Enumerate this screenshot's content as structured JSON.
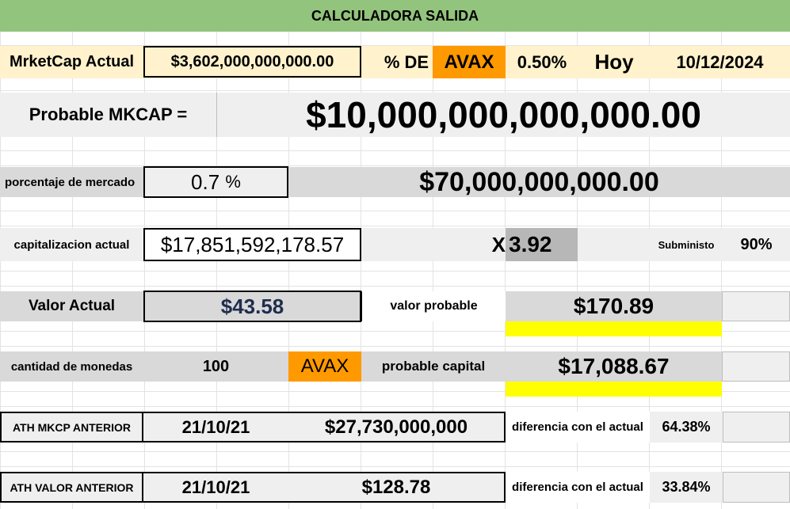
{
  "title": "CALCULADORA SALIDA",
  "marketcap": {
    "label": "MrketCap Actual",
    "value": "$3,602,000,000,000.00",
    "pct_de_label": "% DE",
    "coin": "AVAX",
    "pct_value": "0.50%",
    "hoy_label": "Hoy",
    "date": "10/12/2024"
  },
  "probable": {
    "label": "Probable MKCAP  =",
    "value": "$10,000,000,000,000.00"
  },
  "market_share": {
    "label": "porcentaje de mercado",
    "value": "0.7",
    "unit": "%",
    "result": "$70,000,000,000.00"
  },
  "current_cap": {
    "label": "capitalizacion actual",
    "value": "$17,851,592,178.57",
    "x_label": "X",
    "multiplier": "3.92",
    "supply_label": "Subministo",
    "supply_value": "90%"
  },
  "value": {
    "label": "Valor Actual",
    "current": "$43.58",
    "probable_label": "valor probable",
    "probable": "$170.89"
  },
  "coins": {
    "label": "cantidad de monedas",
    "amount": "100",
    "coin": "AVAX",
    "capital_label": "probable capital",
    "capital": "$17,088.67"
  },
  "ath_mkcp": {
    "label": "ATH MKCP ANTERIOR",
    "date": "21/10/21",
    "value": "$27,730,000,000",
    "diff_label": "diferencia con el actual",
    "diff": "64.38%"
  },
  "ath_value": {
    "label": "ATH VALOR ANTERIOR",
    "date": "21/10/21",
    "value": "$128.78",
    "diff_label": "diferencia con el actual",
    "diff": "33.84%"
  },
  "colors": {
    "title_green": "#93c47d",
    "header_cream": "#fff2cc",
    "orange": "#ff9900",
    "yellow": "#ffff00",
    "gray": "#d9d9d9",
    "light_gray": "#efefef",
    "dark_gray": "#b7b7b7",
    "navy": "#1f2d4d"
  }
}
